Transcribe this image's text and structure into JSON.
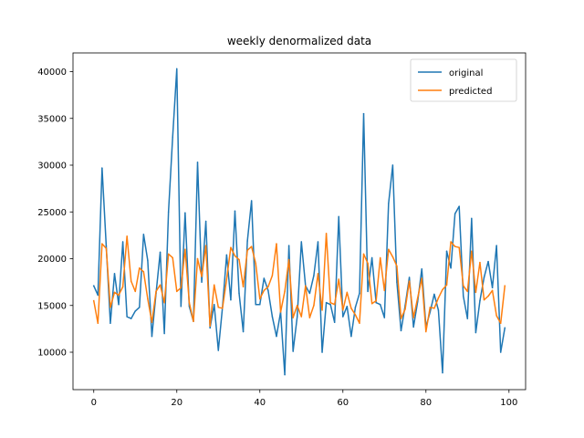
{
  "chart_data": {
    "type": "line",
    "title": "weekly denormalized data",
    "xlabel": "",
    "ylabel": "",
    "xlim": [
      -5,
      104
    ],
    "ylim": [
      6000,
      42000
    ],
    "xticks": [
      0,
      20,
      40,
      60,
      80,
      100
    ],
    "yticks": [
      10000,
      15000,
      20000,
      25000,
      30000,
      35000,
      40000
    ],
    "legend_position": "top-right",
    "grid": false,
    "x": [
      0,
      1,
      2,
      3,
      4,
      5,
      6,
      7,
      8,
      9,
      10,
      11,
      12,
      13,
      14,
      15,
      16,
      17,
      18,
      19,
      20,
      21,
      22,
      23,
      24,
      25,
      26,
      27,
      28,
      29,
      30,
      31,
      32,
      33,
      34,
      35,
      36,
      37,
      38,
      39,
      40,
      41,
      42,
      43,
      44,
      45,
      46,
      47,
      48,
      49,
      50,
      51,
      52,
      53,
      54,
      55,
      56,
      57,
      58,
      59,
      60,
      61,
      62,
      63,
      64,
      65,
      66,
      67,
      68,
      69,
      70,
      71,
      72,
      73,
      74,
      75,
      76,
      77,
      78,
      79,
      80,
      81,
      82,
      83,
      84,
      85,
      86,
      87,
      88,
      89,
      90,
      91,
      92,
      93,
      94,
      95,
      96,
      97,
      98,
      99
    ],
    "series": [
      {
        "name": "original",
        "color": "#1f77b4",
        "values": [
          17100,
          16100,
          29700,
          21400,
          13100,
          18400,
          15100,
          21800,
          13800,
          13600,
          14400,
          14800,
          22600,
          19800,
          11700,
          16300,
          20700,
          12000,
          25000,
          33000,
          40300,
          14900,
          24900,
          14900,
          13300,
          30300,
          17500,
          24000,
          12600,
          15100,
          10200,
          14800,
          20400,
          15600,
          25100,
          16300,
          12200,
          21900,
          26200,
          15100,
          15100,
          17900,
          16600,
          13800,
          11700,
          14300,
          7600,
          21400,
          10100,
          13800,
          21800,
          17100,
          16300,
          18200,
          21800,
          10000,
          15300,
          15100,
          13200,
          24500,
          13800,
          14900,
          11700,
          14800,
          16300,
          35500,
          16500,
          20100,
          15300,
          15100,
          13700,
          25900,
          30000,
          17500,
          12300,
          15000,
          18000,
          12700,
          15400,
          18900,
          12700,
          14300,
          16200,
          14500,
          7800,
          20800,
          19000,
          24800,
          25600,
          16000,
          13600,
          24300,
          12100,
          15500,
          18000,
          19700,
          16900,
          21400,
          10000,
          12600
        ]
      },
      {
        "name": "predicted",
        "color": "#ff7f0e",
        "values": [
          15500,
          13100,
          21600,
          21100,
          14800,
          16400,
          16100,
          17000,
          22400,
          17600,
          16500,
          19000,
          18600,
          15700,
          13200,
          16500,
          17200,
          15300,
          20500,
          20100,
          16500,
          16900,
          21000,
          15300,
          13300,
          20000,
          18100,
          21400,
          12800,
          17200,
          14800,
          14700,
          17800,
          21200,
          20300,
          19900,
          17000,
          20900,
          21300,
          19500,
          15700,
          16600,
          17000,
          18200,
          21600,
          14300,
          16500,
          19900,
          13700,
          15000,
          13800,
          17100,
          13700,
          15000,
          18400,
          14500,
          22700,
          15300,
          15100,
          17800,
          14500,
          16400,
          14700,
          14000,
          13100,
          20500,
          19500,
          15200,
          15500,
          20100,
          16600,
          21000,
          20200,
          19200,
          13600,
          14600,
          17600,
          13700,
          15800,
          17900,
          12200,
          14800,
          14700,
          15800,
          16700,
          17200,
          21800,
          21300,
          21200,
          17100,
          16500,
          20800,
          16400,
          19600,
          15600,
          16000,
          16600,
          13900,
          13100,
          17100
        ]
      }
    ]
  }
}
